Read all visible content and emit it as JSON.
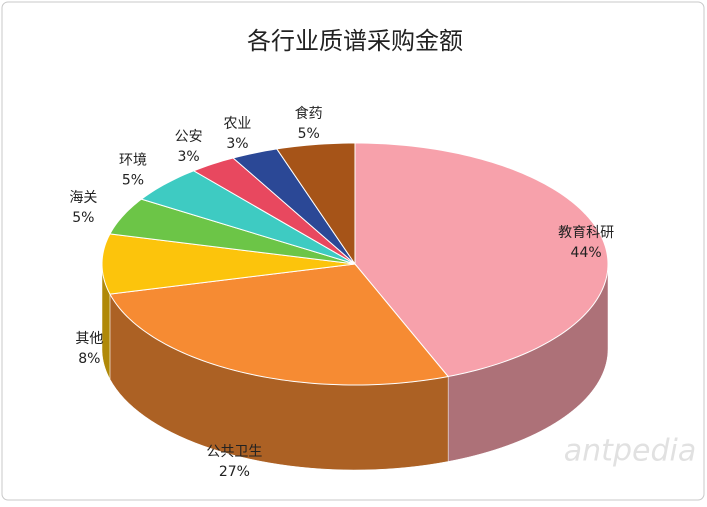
{
  "chart_data": {
    "type": "pie3d",
    "title": "各行业质谱采购金额",
    "categories": [
      "教育科研",
      "公共卫生",
      "其他",
      "海关",
      "环境",
      "公安",
      "农业",
      "食药"
    ],
    "values": [
      44,
      27,
      8,
      5,
      5,
      3,
      3,
      5
    ],
    "value_labels": [
      "44%",
      "27%",
      "8%",
      "5%",
      "5%",
      "3%",
      "3%",
      "5%"
    ],
    "colors": [
      "#f7a1ab",
      "#f68b33",
      "#fcc40c",
      "#6cc547",
      "#3ecbc2",
      "#e8485f",
      "#2b4896",
      "#a65418"
    ],
    "watermark": "antpedia"
  }
}
